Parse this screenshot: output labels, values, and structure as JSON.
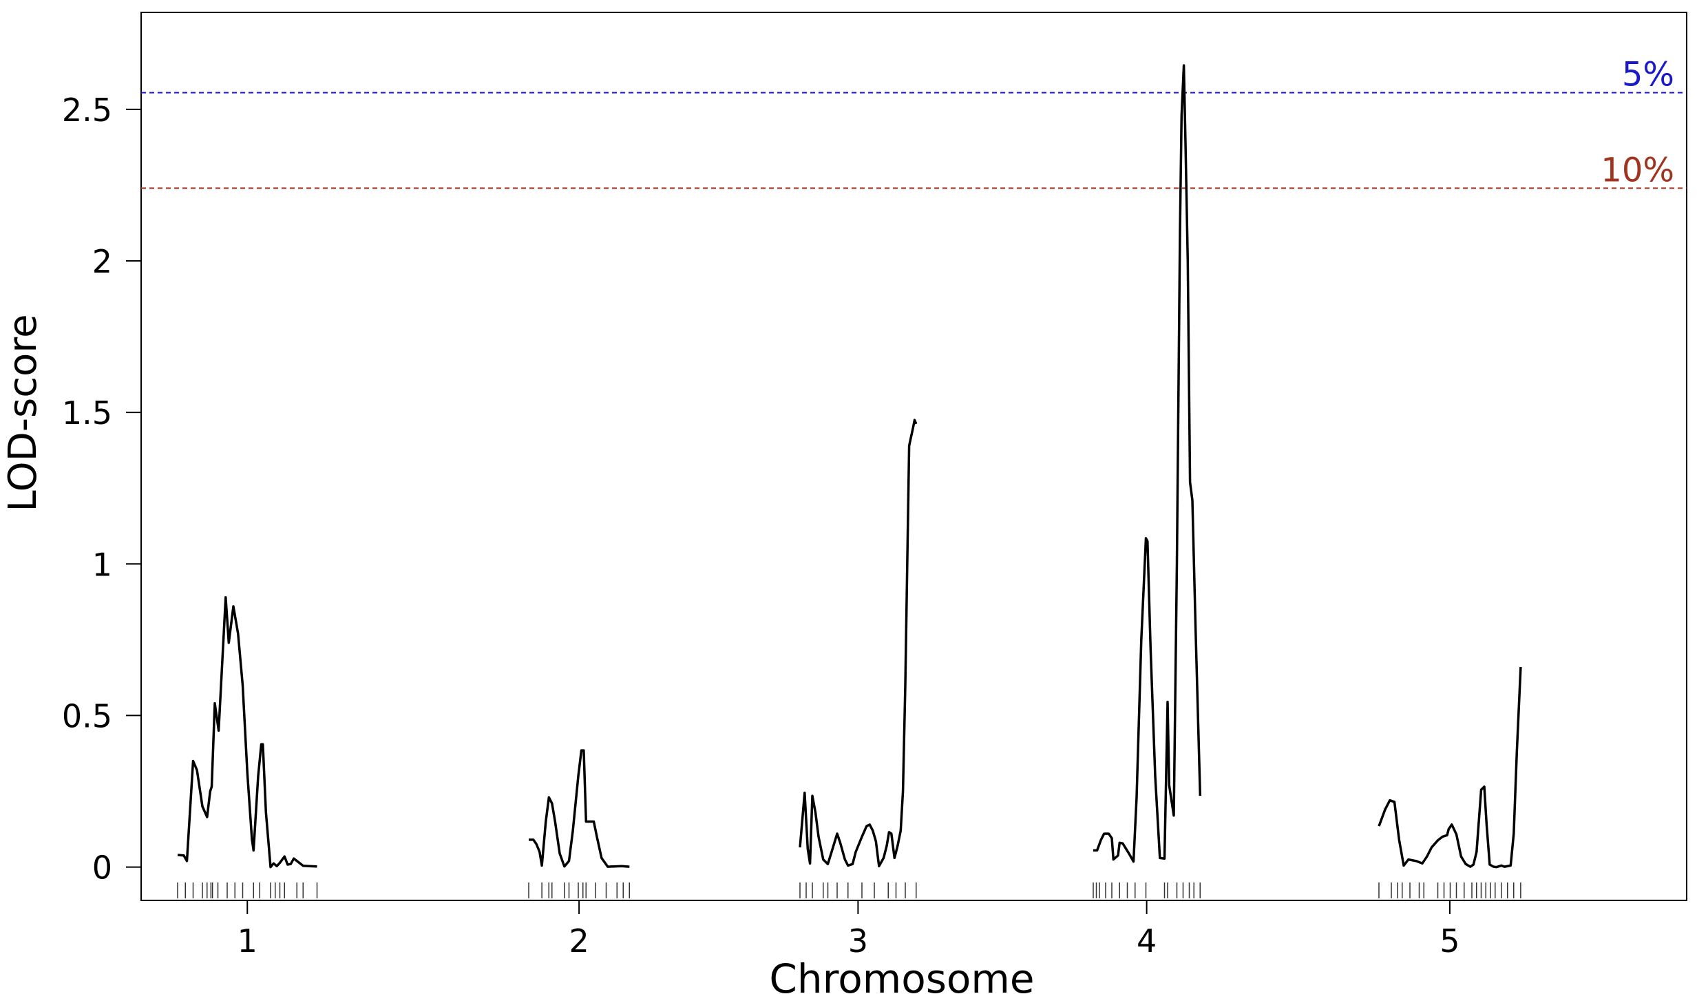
{
  "chart_data": {
    "type": "line",
    "title": "",
    "xlabel": "Chromosome",
    "ylabel": "LOD-score",
    "ylim": [
      -0.11,
      2.82
    ],
    "yticks": [
      0,
      0.5,
      1,
      1.5,
      2,
      2.5
    ],
    "ytick_labels": [
      "0",
      "0.5",
      "1",
      "1.5",
      "2",
      "2.5"
    ],
    "grid": false,
    "thresholds": [
      {
        "label": "5%",
        "value": 2.555,
        "color": "#1a1acc"
      },
      {
        "label": "10%",
        "value": 2.24,
        "color": "#a0341e"
      }
    ],
    "line_color": "#000000",
    "chromosomes": [
      {
        "label": "1",
        "length_cM": 91,
        "points": [
          [
            0,
            0.04
          ],
          [
            8,
            0.038
          ],
          [
            12,
            0.02
          ],
          [
            20,
            0.35
          ],
          [
            25,
            0.32
          ],
          [
            32,
            0.2
          ],
          [
            38,
            0.165
          ],
          [
            42,
            0.25
          ],
          [
            44,
            0.265
          ],
          [
            48,
            0.54
          ],
          [
            53,
            0.45
          ],
          [
            62,
            0.89
          ],
          [
            66,
            0.74
          ],
          [
            72,
            0.86
          ],
          [
            78,
            0.77
          ],
          [
            84,
            0.6
          ],
          [
            90,
            0.31
          ],
          [
            96,
            0.09
          ],
          [
            98,
            0.055
          ],
          [
            104,
            0.3
          ],
          [
            108,
            0.405
          ],
          [
            110,
            0.405
          ],
          [
            114,
            0.18
          ],
          [
            120,
            0.0
          ],
          [
            124,
            0.012
          ],
          [
            128,
            0.003
          ],
          [
            132,
            0.014
          ],
          [
            138,
            0.035
          ],
          [
            142,
            0.008
          ],
          [
            146,
            0.01
          ],
          [
            150,
            0.028
          ],
          [
            154,
            0.02
          ],
          [
            162,
            0.004
          ],
          [
            170,
            0.003
          ],
          [
            180,
            0.002
          ]
        ],
        "markers": [
          0,
          10,
          20,
          32,
          38,
          43,
          45,
          52,
          64,
          74,
          84,
          98,
          106,
          120,
          126,
          132,
          138,
          154,
          162,
          180
        ]
      },
      {
        "label": "2",
        "length_cM": 97,
        "points": [
          [
            0,
            0.09
          ],
          [
            6,
            0.09
          ],
          [
            10,
            0.075
          ],
          [
            14,
            0.05
          ],
          [
            17,
            0.005
          ],
          [
            22,
            0.15
          ],
          [
            26,
            0.23
          ],
          [
            30,
            0.21
          ],
          [
            34,
            0.15
          ],
          [
            40,
            0.045
          ],
          [
            46,
            0.002
          ],
          [
            52,
            0.02
          ],
          [
            57,
            0.12
          ],
          [
            64,
            0.3
          ],
          [
            68,
            0.385
          ],
          [
            71,
            0.385
          ],
          [
            74,
            0.15
          ],
          [
            84,
            0.15
          ],
          [
            88,
            0.1
          ],
          [
            94,
            0.03
          ],
          [
            102,
            0.001
          ],
          [
            120,
            0.003
          ],
          [
            130,
            0.001
          ]
        ],
        "markers": [
          0,
          17,
          26,
          30,
          46,
          52,
          64,
          70,
          74,
          86,
          100,
          114,
          122,
          130
        ]
      },
      {
        "label": "3",
        "length_cM": 96,
        "points": [
          [
            0,
            0.065
          ],
          [
            6,
            0.245
          ],
          [
            10,
            0.06
          ],
          [
            13,
            0.012
          ],
          [
            16,
            0.235
          ],
          [
            20,
            0.18
          ],
          [
            24,
            0.1
          ],
          [
            30,
            0.025
          ],
          [
            36,
            0.01
          ],
          [
            42,
            0.06
          ],
          [
            48,
            0.11
          ],
          [
            52,
            0.08
          ],
          [
            58,
            0.025
          ],
          [
            62,
            0.005
          ],
          [
            68,
            0.01
          ],
          [
            72,
            0.05
          ],
          [
            80,
            0.1
          ],
          [
            86,
            0.135
          ],
          [
            90,
            0.14
          ],
          [
            94,
            0.12
          ],
          [
            98,
            0.085
          ],
          [
            102,
            0.003
          ],
          [
            108,
            0.03
          ],
          [
            112,
            0.07
          ],
          [
            115,
            0.115
          ],
          [
            118,
            0.11
          ],
          [
            122,
            0.03
          ],
          [
            126,
            0.07
          ],
          [
            130,
            0.12
          ],
          [
            133,
            0.25
          ],
          [
            136,
            0.6
          ],
          [
            141,
            1.39
          ],
          [
            146,
            1.45
          ],
          [
            148,
            1.475
          ],
          [
            150,
            1.462
          ]
        ],
        "markers": [
          0,
          8,
          16,
          30,
          36,
          48,
          62,
          80,
          96,
          114,
          124,
          136,
          150
        ]
      },
      {
        "label": "4",
        "length_cM": 104,
        "points": [
          [
            0,
            0.055
          ],
          [
            5,
            0.055
          ],
          [
            10,
            0.09
          ],
          [
            14,
            0.11
          ],
          [
            20,
            0.11
          ],
          [
            24,
            0.095
          ],
          [
            26,
            0.025
          ],
          [
            32,
            0.038
          ],
          [
            34,
            0.08
          ],
          [
            38,
            0.078
          ],
          [
            46,
            0.045
          ],
          [
            52,
            0.018
          ],
          [
            56,
            0.23
          ],
          [
            62,
            0.75
          ],
          [
            68,
            1.085
          ],
          [
            70,
            1.075
          ],
          [
            74,
            0.72
          ],
          [
            80,
            0.3
          ],
          [
            86,
            0.03
          ],
          [
            92,
            0.028
          ],
          [
            96,
            0.545
          ],
          [
            98,
            0.27
          ],
          [
            104,
            0.17
          ],
          [
            108,
            1.0
          ],
          [
            112,
            2.1
          ],
          [
            114,
            2.48
          ],
          [
            117,
            2.645
          ],
          [
            119,
            2.4
          ],
          [
            122,
            2.0
          ],
          [
            125,
            1.27
          ],
          [
            128,
            1.21
          ],
          [
            132,
            0.8
          ],
          [
            138,
            0.235
          ]
        ],
        "markers": [
          0,
          4,
          8,
          16,
          24,
          34,
          44,
          54,
          68,
          92,
          96,
          108,
          116,
          124,
          130,
          138
        ]
      },
      {
        "label": "5",
        "length_cM": 115,
        "points": [
          [
            0,
            0.135
          ],
          [
            8,
            0.19
          ],
          [
            14,
            0.22
          ],
          [
            20,
            0.215
          ],
          [
            26,
            0.09
          ],
          [
            32,
            0.005
          ],
          [
            38,
            0.025
          ],
          [
            48,
            0.02
          ],
          [
            56,
            0.012
          ],
          [
            62,
            0.035
          ],
          [
            68,
            0.065
          ],
          [
            76,
            0.088
          ],
          [
            82,
            0.1
          ],
          [
            88,
            0.105
          ],
          [
            90,
            0.125
          ],
          [
            94,
            0.14
          ],
          [
            100,
            0.108
          ],
          [
            106,
            0.035
          ],
          [
            112,
            0.01
          ],
          [
            118,
            0.001
          ],
          [
            122,
            0.008
          ],
          [
            126,
            0.05
          ],
          [
            132,
            0.255
          ],
          [
            136,
            0.265
          ],
          [
            139,
            0.14
          ],
          [
            143,
            0.008
          ],
          [
            148,
            0.001
          ],
          [
            152,
            0.0
          ],
          [
            158,
            0.005
          ],
          [
            162,
            0.001
          ],
          [
            170,
            0.005
          ],
          [
            174,
            0.11
          ],
          [
            178,
            0.38
          ],
          [
            183,
            0.66
          ]
        ],
        "markers": [
          0,
          16,
          24,
          30,
          40,
          52,
          58,
          76,
          84,
          92,
          100,
          110,
          120,
          126,
          132,
          138,
          144,
          150,
          158,
          166,
          174,
          183
        ]
      }
    ]
  }
}
